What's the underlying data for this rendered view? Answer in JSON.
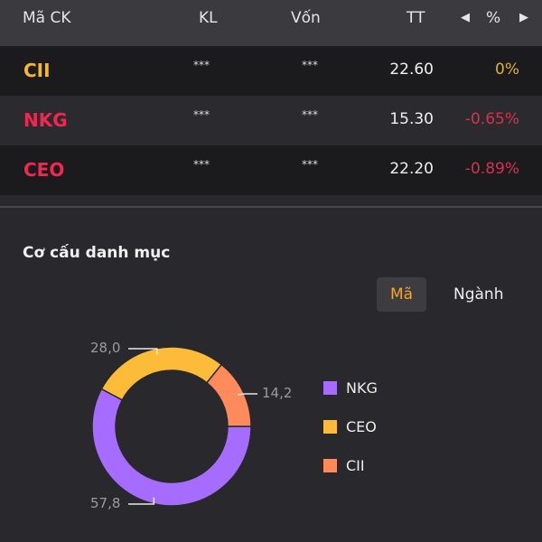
{
  "table": {
    "headers": {
      "symbol": "Mã CK",
      "kl": "KL",
      "von": "Vốn",
      "tt": "TT",
      "pct": "%"
    },
    "rows": [
      {
        "symbol": "CII",
        "kl": "***",
        "von": "***",
        "tt": "22.60",
        "pct": "0%",
        "color": "#f4b731",
        "pct_color": "#e0b030"
      },
      {
        "symbol": "NKG",
        "kl": "***",
        "von": "***",
        "tt": "15.30",
        "pct": "-0.65%",
        "color": "#f0284f",
        "pct_color": "#d8304f"
      },
      {
        "symbol": "CEO",
        "kl": "***",
        "von": "***",
        "tt": "22.20",
        "pct": "-0.89%",
        "color": "#f0284f",
        "pct_color": "#d8304f"
      }
    ]
  },
  "portfolio": {
    "title": "Cơ cấu danh mục",
    "tabs": [
      "Mã",
      "Ngành"
    ],
    "active_tab": "Mã"
  },
  "chart_data": {
    "type": "pie",
    "donut": true,
    "series": [
      {
        "name": "NKG",
        "value": 57.8,
        "label": "57,8",
        "color": "#a66cff"
      },
      {
        "name": "CEO",
        "value": 28.0,
        "label": "28,0",
        "color": "#fdbb3a"
      },
      {
        "name": "CII",
        "value": 14.2,
        "label": "14,2",
        "color": "#ff8a5c"
      }
    ],
    "legend": "right"
  }
}
